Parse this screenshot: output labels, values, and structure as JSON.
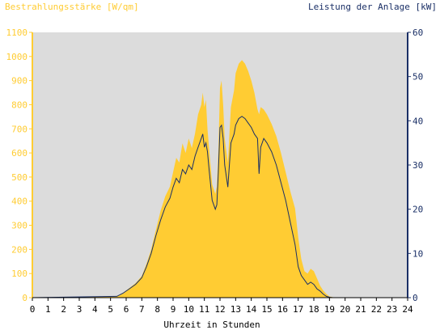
{
  "colors": {
    "irradiance": "#ffcc33",
    "power": "#1a2f66",
    "plot_bg": "#dcdcdc",
    "left_axis": "#ffcc33",
    "right_axis": "#1a2f66",
    "x_axis": "#000000"
  },
  "chart_data": {
    "type": "area",
    "left_title": "Bestrahlungsstärke [W/qm]",
    "right_title": "Leistung der Anlage [kW]",
    "xlabel": "Uhrzeit in Stunden",
    "xlim": [
      0,
      24
    ],
    "ylim_left": [
      0,
      1100
    ],
    "ylim_right": [
      0,
      60
    ],
    "x_ticks": [
      "0",
      "1",
      "2",
      "3",
      "4",
      "5",
      "6",
      "7",
      "8",
      "9",
      "10",
      "11",
      "12",
      "13",
      "14",
      "15",
      "16",
      "17",
      "18",
      "19",
      "20",
      "21",
      "22",
      "23",
      "24"
    ],
    "y_left_ticks": [
      "0",
      "100",
      "200",
      "300",
      "400",
      "500",
      "600",
      "700",
      "800",
      "900",
      "1000",
      "1100"
    ],
    "y_right_ticks": [
      "0",
      "10",
      "20",
      "30",
      "40",
      "50",
      "60"
    ],
    "series": [
      {
        "name": "Bestrahlungsstärke",
        "axis": "left",
        "style": "area",
        "x": [
          0,
          5.4,
          5.8,
          6.2,
          6.6,
          7.0,
          7.3,
          7.6,
          7.9,
          8.2,
          8.5,
          8.8,
          9.0,
          9.2,
          9.4,
          9.6,
          9.8,
          10.0,
          10.2,
          10.4,
          10.6,
          10.8,
          10.9,
          11.0,
          11.1,
          11.2,
          11.3,
          11.5,
          11.7,
          11.8,
          11.9,
          12.0,
          12.1,
          12.2,
          12.3,
          12.5,
          12.7,
          12.9,
          13.0,
          13.2,
          13.4,
          13.6,
          13.8,
          14.0,
          14.2,
          14.4,
          14.5,
          14.6,
          14.8,
          15.0,
          15.3,
          15.6,
          15.9,
          16.2,
          16.5,
          16.8,
          17.0,
          17.2,
          17.4,
          17.6,
          17.8,
          18.0,
          18.2,
          18.4,
          18.6,
          18.8,
          19.0,
          19.2,
          19.5,
          24
        ],
        "y": [
          0,
          5,
          20,
          40,
          60,
          90,
          140,
          200,
          280,
          360,
          420,
          460,
          520,
          580,
          560,
          640,
          600,
          660,
          620,
          680,
          760,
          800,
          850,
          790,
          820,
          700,
          620,
          470,
          430,
          460,
          620,
          870,
          900,
          800,
          660,
          560,
          790,
          860,
          930,
          970,
          985,
          970,
          940,
          900,
          850,
          780,
          760,
          790,
          780,
          760,
          720,
          670,
          600,
          520,
          440,
          370,
          250,
          160,
          110,
          100,
          120,
          110,
          80,
          50,
          30,
          15,
          5,
          2,
          0,
          0
        ]
      },
      {
        "name": "Leistung der Anlage",
        "axis": "right",
        "style": "line",
        "x": [
          0,
          5.4,
          5.8,
          6.2,
          6.6,
          7.0,
          7.3,
          7.6,
          7.9,
          8.2,
          8.5,
          8.8,
          9.0,
          9.2,
          9.4,
          9.6,
          9.8,
          10.0,
          10.2,
          10.4,
          10.6,
          10.8,
          10.9,
          11.0,
          11.1,
          11.2,
          11.3,
          11.5,
          11.7,
          11.8,
          11.9,
          12.0,
          12.1,
          12.2,
          12.3,
          12.5,
          12.7,
          12.9,
          13.0,
          13.2,
          13.4,
          13.6,
          13.8,
          14.0,
          14.2,
          14.4,
          14.5,
          14.6,
          14.8,
          15.0,
          15.3,
          15.6,
          15.9,
          16.2,
          16.5,
          16.8,
          17.0,
          17.2,
          17.4,
          17.6,
          17.8,
          18.0,
          18.2,
          18.4,
          18.6,
          18.8,
          19.0,
          19.2,
          19.5,
          24
        ],
        "y": [
          0,
          0.3,
          1,
          2,
          3,
          4.5,
          7,
          10,
          14,
          17.5,
          20.5,
          22.5,
          25,
          27,
          26,
          29,
          28,
          30,
          29,
          32,
          34,
          36,
          37,
          34,
          35,
          33,
          29,
          22,
          20,
          21,
          29,
          38.5,
          39,
          36,
          30,
          25,
          35,
          37,
          39,
          40.5,
          41,
          40.5,
          39.5,
          38.5,
          37,
          36,
          28,
          34,
          36,
          35,
          33,
          30,
          26,
          22,
          17,
          12,
          7,
          5,
          4,
          3,
          3.5,
          3,
          2,
          1.5,
          0.8,
          0.3,
          0.1,
          0,
          0,
          0
        ]
      }
    ],
    "grid": false,
    "legend": "none"
  }
}
